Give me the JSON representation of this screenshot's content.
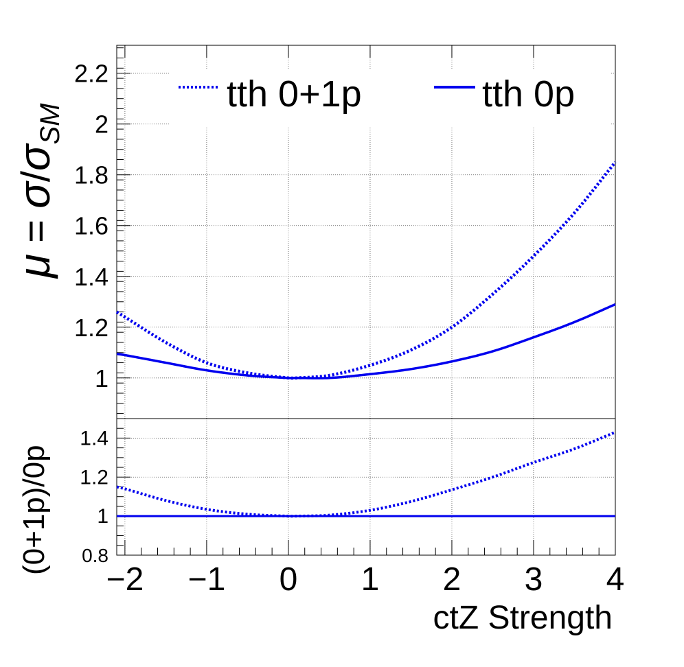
{
  "chart_data": [
    {
      "type": "line",
      "panel": "main",
      "ylabel": "μ = σ/σSM",
      "ylabel_parts": {
        "mu": "μ",
        "eq": " = ",
        "sigma": "σ",
        "slash": "/",
        "sigma2": "σ",
        "sub": "SM"
      },
      "xlim": [
        -2.1,
        4.0
      ],
      "ylim": [
        0.84,
        2.31
      ],
      "yticks": [
        1,
        1.2,
        1.4,
        1.6,
        1.8,
        2,
        2.2
      ],
      "ytick_labels": [
        "1",
        "1.2",
        "1.4",
        "1.6",
        "1.8",
        "2",
        "2.2"
      ],
      "grid": true,
      "legend_position": "top",
      "series": [
        {
          "name": "tth 0+1p",
          "style": "dotted",
          "color": "#0000ee",
          "x": [
            -2.1,
            -2.0,
            -1.5,
            -1.0,
            -0.5,
            0.0,
            0.1,
            0.5,
            1.0,
            1.5,
            2.0,
            2.5,
            3.0,
            3.5,
            4.0
          ],
          "y": [
            1.26,
            1.24,
            1.14,
            1.06,
            1.02,
            1.0,
            1.0,
            1.01,
            1.05,
            1.11,
            1.2,
            1.33,
            1.48,
            1.65,
            1.85
          ]
        },
        {
          "name": "tth 0p",
          "style": "solid",
          "color": "#0000ee",
          "x": [
            -2.1,
            -2.0,
            -1.5,
            -1.0,
            -0.5,
            0.0,
            0.1,
            0.5,
            1.0,
            1.5,
            2.0,
            2.5,
            3.0,
            3.5,
            4.0
          ],
          "y": [
            1.095,
            1.09,
            1.06,
            1.03,
            1.01,
            1.0,
            1.0,
            1.0,
            1.015,
            1.035,
            1.065,
            1.105,
            1.16,
            1.22,
            1.29
          ]
        }
      ]
    },
    {
      "type": "line",
      "panel": "ratio",
      "ylabel": "(0+1p)/0p",
      "xlabel": "ctZ Strength",
      "xlim": [
        -2.1,
        4.0
      ],
      "ylim": [
        0.8,
        1.5
      ],
      "xticks": [
        -2,
        -1,
        0,
        1,
        2,
        3,
        4
      ],
      "xtick_labels": [
        "−2",
        "−1",
        "0",
        "1",
        "2",
        "3",
        "4"
      ],
      "yticks": [
        0.8,
        1,
        1.2,
        1.4
      ],
      "ytick_labels": [
        "0.8",
        "1",
        "1.2",
        "1.4"
      ],
      "grid": true,
      "series": [
        {
          "style": "dotted",
          "color": "#0000ee",
          "x": [
            -2.1,
            -2.0,
            -1.5,
            -1.0,
            -0.5,
            0.0,
            0.1,
            0.5,
            1.0,
            1.5,
            2.0,
            2.5,
            3.0,
            3.5,
            4.0
          ],
          "y": [
            1.15,
            1.14,
            1.08,
            1.035,
            1.01,
            1.0,
            1.0,
            1.005,
            1.03,
            1.075,
            1.135,
            1.2,
            1.275,
            1.345,
            1.43
          ]
        },
        {
          "style": "solid",
          "color": "#0000ee",
          "x": [
            -2.1,
            4.0
          ],
          "y": [
            1.0,
            1.0
          ]
        }
      ]
    }
  ]
}
